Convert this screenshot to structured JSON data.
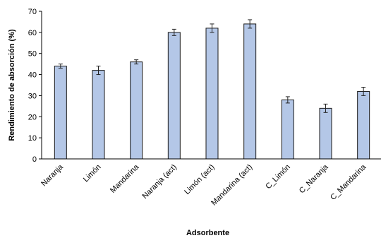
{
  "chart_data": {
    "type": "bar",
    "title": "",
    "xlabel": "Adsorbente",
    "ylabel": "Rendimiento de absorción (%)",
    "ylim": [
      0,
      70
    ],
    "yticks": [
      0,
      10,
      20,
      30,
      40,
      50,
      60,
      70
    ],
    "grid": false,
    "legend": "none",
    "categories": [
      "Naranja",
      "Limón",
      "Mandarina",
      "Naranja (act)",
      "Limón (act)",
      "Mandarina (act)",
      "C_Limón",
      "C_Naranja",
      "C_Mandarina"
    ],
    "values": [
      44,
      42,
      46,
      60,
      62,
      64,
      28,
      24,
      32
    ],
    "errors": [
      1,
      2,
      1,
      1.5,
      2,
      2,
      1.5,
      2,
      2
    ],
    "colors": {
      "bar_fill": "#b4c7e7",
      "bar_stroke": "#1a1a1a",
      "axis": "#000000"
    }
  }
}
